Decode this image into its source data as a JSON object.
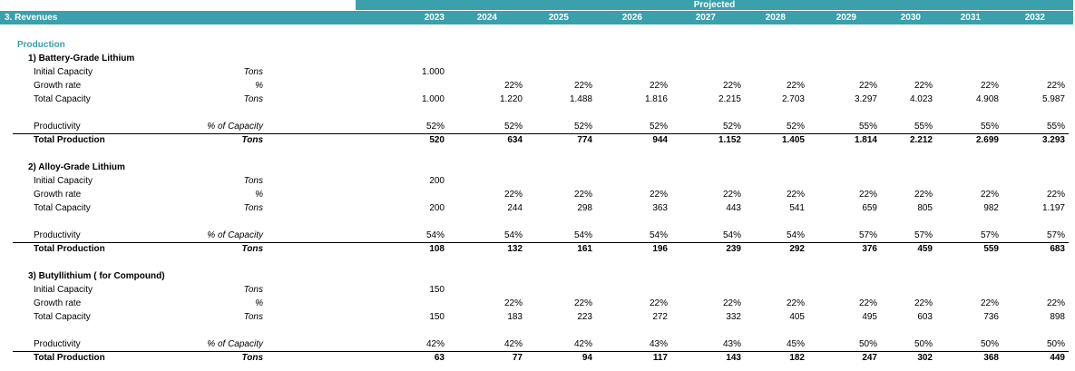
{
  "header": {
    "projected_label": "Projected",
    "title": "3. Revenues",
    "years": [
      "2023",
      "2024",
      "2025",
      "2026",
      "2027",
      "2028",
      "2029",
      "2030",
      "2031",
      "2032"
    ]
  },
  "section_title": "Production",
  "blocks": [
    {
      "title": "1) Battery-Grade Lithium",
      "rows": [
        {
          "label": "Initial Capacity",
          "unit": "Tons",
          "values": [
            "1.000",
            "",
            "",
            "",
            "",
            "",
            "",
            "",
            "",
            ""
          ]
        },
        {
          "label": "Growth rate",
          "unit": "%",
          "values": [
            "",
            "22%",
            "22%",
            "22%",
            "22%",
            "22%",
            "22%",
            "22%",
            "22%",
            "22%"
          ]
        },
        {
          "label": "Total Capacity",
          "unit": "Tons",
          "values": [
            "1.000",
            "1.220",
            "1.488",
            "1.816",
            "2.215",
            "2.703",
            "3.297",
            "4.023",
            "4.908",
            "5.987"
          ]
        },
        {
          "label": "Productivity",
          "unit": "% of Capacity",
          "values": [
            "52%",
            "52%",
            "52%",
            "52%",
            "52%",
            "52%",
            "55%",
            "55%",
            "55%",
            "55%"
          ]
        },
        {
          "label": "Total Production",
          "unit": "Tons",
          "values": [
            "520",
            "634",
            "774",
            "944",
            "1.152",
            "1.405",
            "1.814",
            "2.212",
            "2.699",
            "3.293"
          ]
        }
      ]
    },
    {
      "title": "2) Alloy-Grade Lithium",
      "rows": [
        {
          "label": "Initial Capacity",
          "unit": "Tons",
          "values": [
            "200",
            "",
            "",
            "",
            "",
            "",
            "",
            "",
            "",
            ""
          ]
        },
        {
          "label": "Growth rate",
          "unit": "%",
          "values": [
            "",
            "22%",
            "22%",
            "22%",
            "22%",
            "22%",
            "22%",
            "22%",
            "22%",
            "22%"
          ]
        },
        {
          "label": "Total Capacity",
          "unit": "Tons",
          "values": [
            "200",
            "244",
            "298",
            "363",
            "443",
            "541",
            "659",
            "805",
            "982",
            "1.197"
          ]
        },
        {
          "label": "Productivity",
          "unit": "% of Capacity",
          "values": [
            "54%",
            "54%",
            "54%",
            "54%",
            "54%",
            "54%",
            "57%",
            "57%",
            "57%",
            "57%"
          ]
        },
        {
          "label": "Total Production",
          "unit": "Tons",
          "values": [
            "108",
            "132",
            "161",
            "196",
            "239",
            "292",
            "376",
            "459",
            "559",
            "683"
          ]
        }
      ]
    },
    {
      "title": "3) Butyllithium ( for Compound)",
      "rows": [
        {
          "label": "Initial Capacity",
          "unit": "Tons",
          "values": [
            "150",
            "",
            "",
            "",
            "",
            "",
            "",
            "",
            "",
            ""
          ]
        },
        {
          "label": "Growth rate",
          "unit": "%",
          "values": [
            "",
            "22%",
            "22%",
            "22%",
            "22%",
            "22%",
            "22%",
            "22%",
            "22%",
            "22%"
          ]
        },
        {
          "label": "Total Capacity",
          "unit": "Tons",
          "values": [
            "150",
            "183",
            "223",
            "272",
            "332",
            "405",
            "495",
            "603",
            "736",
            "898"
          ]
        },
        {
          "label": "Productivity",
          "unit": "% of Capacity",
          "values": [
            "42%",
            "42%",
            "42%",
            "43%",
            "43%",
            "45%",
            "50%",
            "50%",
            "50%",
            "50%"
          ]
        },
        {
          "label": "Total Production",
          "unit": "Tons",
          "values": [
            "63",
            "77",
            "94",
            "117",
            "143",
            "182",
            "247",
            "302",
            "368",
            "449"
          ]
        }
      ]
    }
  ]
}
